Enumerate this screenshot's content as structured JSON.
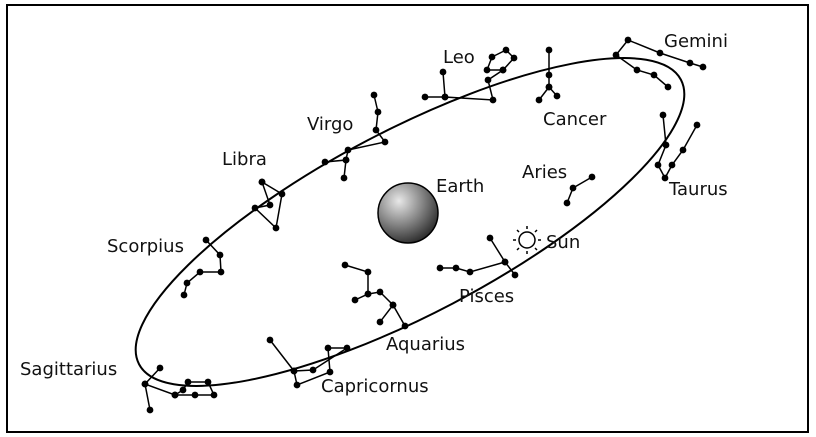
{
  "labels": [
    "Leo",
    "Gemini",
    "Cancer",
    "Virgo",
    "Libra",
    "Aries",
    "Taurus",
    "Earth",
    "Sun",
    "Scorpius",
    "Pisces",
    "Aquarius",
    "Sagittarius",
    "Capricornus"
  ]
}
